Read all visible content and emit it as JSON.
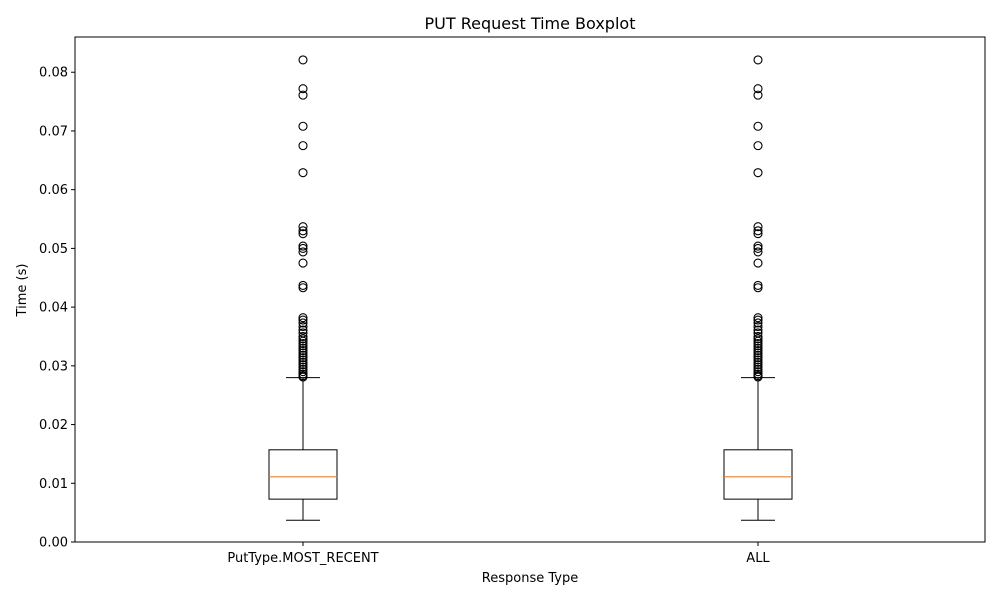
{
  "chart_data": {
    "type": "boxplot",
    "title": "PUT Request Time Boxplot",
    "xlabel": "Response Type",
    "ylabel": "Time (s)",
    "ylim": [
      0.0,
      0.086
    ],
    "yticks": [
      0.0,
      0.01,
      0.02,
      0.03,
      0.04,
      0.05,
      0.06,
      0.07,
      0.08
    ],
    "ytick_labels": [
      "0.00",
      "0.01",
      "0.02",
      "0.03",
      "0.04",
      "0.05",
      "0.06",
      "0.07",
      "0.08"
    ],
    "grid": false,
    "categories": [
      "PutType.MOST_RECENT",
      "ALL"
    ],
    "boxes": [
      {
        "category": "PutType.MOST_RECENT",
        "whisker_low": 0.0037,
        "q1": 0.0073,
        "median": 0.0111,
        "q3": 0.0157,
        "whisker_high": 0.028,
        "outliers": [
          0.0821,
          0.0772,
          0.0761,
          0.0708,
          0.0675,
          0.0629,
          0.0537,
          0.053,
          0.0525,
          0.0504,
          0.05,
          0.0494,
          0.0475,
          0.0437,
          0.0433,
          0.0382,
          0.0378,
          0.0373,
          0.0367,
          0.0361,
          0.0356,
          0.035,
          0.0346,
          0.0342,
          0.0338,
          0.0334,
          0.033,
          0.0326,
          0.0322,
          0.0318,
          0.0314,
          0.031,
          0.0306,
          0.0302,
          0.0298,
          0.0294,
          0.029,
          0.0286,
          0.0283,
          0.0281
        ]
      },
      {
        "category": "ALL",
        "whisker_low": 0.0037,
        "q1": 0.0073,
        "median": 0.0111,
        "q3": 0.0157,
        "whisker_high": 0.028,
        "outliers": [
          0.0821,
          0.0772,
          0.0761,
          0.0708,
          0.0675,
          0.0629,
          0.0537,
          0.053,
          0.0525,
          0.0504,
          0.05,
          0.0494,
          0.0475,
          0.0437,
          0.0433,
          0.0382,
          0.0378,
          0.0373,
          0.0367,
          0.0361,
          0.0356,
          0.035,
          0.0346,
          0.0342,
          0.0338,
          0.0334,
          0.033,
          0.0326,
          0.0322,
          0.0318,
          0.0314,
          0.031,
          0.0306,
          0.0302,
          0.0298,
          0.0294,
          0.029,
          0.0286,
          0.0283,
          0.0281
        ]
      }
    ],
    "colors": {
      "box": "#000000",
      "median": "#ff7f0e",
      "outlier": "#000000"
    }
  }
}
